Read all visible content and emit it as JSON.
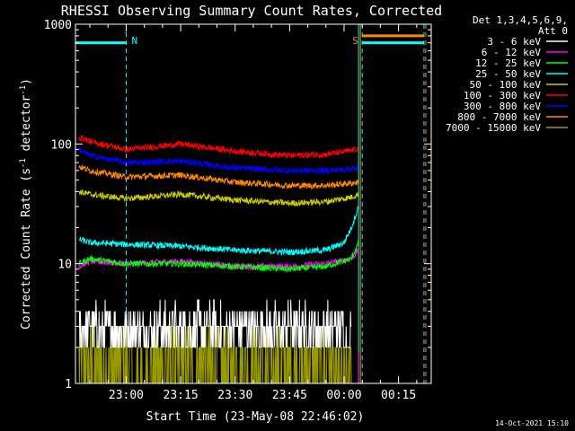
{
  "chart_data": {
    "type": "line",
    "title": "RHESSI Observing Summary Count Rates, Corrected",
    "xlabel": "Start Time (23-May-08 22:46:02)",
    "ylabel_parts": [
      "Corrected Count Rate (s",
      "-1",
      " detector",
      "-1",
      ")"
    ],
    "y_scale": "log",
    "ylim": [
      1,
      1000
    ],
    "y_ticks": [
      {
        "value": 1,
        "label": "1"
      },
      {
        "value": 10,
        "label": "10"
      },
      {
        "value": 100,
        "label": "100"
      },
      {
        "value": 1000,
        "label": "1000"
      }
    ],
    "xlim": [
      "22:46:02",
      "00:24:00"
    ],
    "x_ticks": [
      {
        "time": "23:00",
        "label": "23:00"
      },
      {
        "time": "23:15",
        "label": "23:15"
      },
      {
        "time": "23:30",
        "label": "23:30"
      },
      {
        "time": "23:45",
        "label": "23:45"
      },
      {
        "time": "00:00",
        "label": "00:00"
      },
      {
        "time": "00:15",
        "label": "00:15"
      }
    ],
    "legend_header": [
      "Det 1,3,4,5,6,9,",
      "Att 0"
    ],
    "legend_position": "right",
    "series": [
      {
        "name": "3 - 6 keV",
        "color": "#ffffff",
        "noise": "discrete_low",
        "x": [
          "22:47",
          "23:00",
          "23:15",
          "23:30",
          "23:45",
          "00:02"
        ],
        "y": [
          3,
          3,
          3,
          3,
          3,
          3
        ]
      },
      {
        "name": "6 - 12 keV",
        "color": "#ff00ff",
        "x": [
          "22:47",
          "22:50",
          "23:00",
          "23:15",
          "23:30",
          "23:45",
          "23:55",
          "00:02",
          "00:04"
        ],
        "y": [
          9.5,
          10.5,
          10,
          10.5,
          9.5,
          9.5,
          10,
          11,
          13
        ]
      },
      {
        "name": "12 - 25 keV",
        "color": "#00ff00",
        "x": [
          "22:47",
          "22:50",
          "23:00",
          "23:15",
          "23:30",
          "23:45",
          "23:55",
          "00:02",
          "00:04"
        ],
        "y": [
          10,
          11,
          10,
          10,
          9.5,
          9,
          9.5,
          11,
          15
        ]
      },
      {
        "name": "25 - 50 keV",
        "color": "#00ffff",
        "x": [
          "22:47",
          "22:50",
          "23:00",
          "23:15",
          "23:30",
          "23:45",
          "23:55",
          "00:00",
          "00:02",
          "00:04"
        ],
        "y": [
          16,
          15,
          14.5,
          14,
          13,
          12.5,
          13,
          15,
          20,
          30
        ]
      },
      {
        "name": "50 - 100 keV",
        "color": "#cccc00",
        "x": [
          "22:47",
          "22:50",
          "23:00",
          "23:15",
          "23:30",
          "23:45",
          "23:55",
          "00:02",
          "00:04"
        ],
        "y": [
          40,
          38,
          35,
          38,
          34,
          32,
          33,
          36,
          38
        ]
      },
      {
        "name": "100 - 300 keV",
        "color": "#ff0000",
        "x": [
          "22:47",
          "22:50",
          "23:00",
          "23:15",
          "23:30",
          "23:45",
          "23:55",
          "00:02",
          "00:04"
        ],
        "y": [
          115,
          105,
          90,
          100,
          87,
          80,
          82,
          88,
          92
        ]
      },
      {
        "name": "300 - 800 keV",
        "color": "#0000ff",
        "x": [
          "22:47",
          "22:50",
          "23:00",
          "23:15",
          "23:30",
          "23:45",
          "23:55",
          "00:02",
          "00:04"
        ],
        "y": [
          90,
          80,
          70,
          72,
          63,
          60,
          60,
          62,
          62
        ]
      },
      {
        "name": "800 - 7000 keV",
        "color": "#ff8800",
        "x": [
          "22:47",
          "22:50",
          "23:00",
          "23:15",
          "23:30",
          "23:45",
          "23:55",
          "00:02",
          "00:04"
        ],
        "y": [
          65,
          60,
          53,
          55,
          48,
          45,
          45,
          47,
          48
        ]
      },
      {
        "name": "7000 - 15000 keV",
        "color": "#999900",
        "noise": "discrete_low",
        "x": [
          "22:47",
          "23:00",
          "23:15",
          "23:30",
          "23:45",
          "00:02"
        ],
        "y": [
          1.5,
          1.5,
          1.5,
          1.5,
          1.5,
          1.5
        ]
      }
    ],
    "annotations": [
      {
        "text": "N",
        "time": "23:00",
        "color": "#00ffff"
      },
      {
        "text": "S",
        "time": "00:04",
        "color": "#ff8800"
      }
    ],
    "vertical_markers": [
      {
        "time": "23:00",
        "color": "#00ffff",
        "style": "dashed"
      },
      {
        "time": "00:04",
        "color": "#00ffff",
        "style": "solid"
      },
      {
        "time": "00:04:30",
        "color": "#ff8800",
        "style": "solid"
      },
      {
        "time": "00:05",
        "color": "#00ffff",
        "style": "dashed"
      },
      {
        "time": "00:22",
        "color": "#00ffff",
        "style": "dashed"
      },
      {
        "time": "00:22:30",
        "color": "#ff8800",
        "style": "dashed"
      }
    ],
    "state_bars": [
      {
        "color": "#00ffff",
        "segments": [
          [
            "22:46:02",
            "23:00"
          ],
          [
            "00:05",
            "00:22"
          ]
        ],
        "level": 700
      },
      {
        "color": "#ff8800",
        "segments": [
          [
            "00:05",
            "00:22"
          ]
        ],
        "level": 800
      }
    ]
  },
  "footer": {
    "timestamp": "14-Oct-2021 15:10"
  }
}
